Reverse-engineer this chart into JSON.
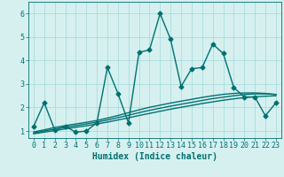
{
  "xlabel": "Humidex (Indice chaleur)",
  "bg_color": "#d6f0f0",
  "line_color": "#007070",
  "xlim": [
    -0.5,
    23.5
  ],
  "ylim": [
    0.7,
    6.5
  ],
  "xticks": [
    0,
    1,
    2,
    3,
    4,
    5,
    6,
    7,
    8,
    9,
    10,
    11,
    12,
    13,
    14,
    15,
    16,
    17,
    18,
    19,
    20,
    21,
    22,
    23
  ],
  "yticks": [
    1,
    2,
    3,
    4,
    5,
    6
  ],
  "main_x": [
    0,
    1,
    2,
    3,
    4,
    5,
    6,
    7,
    8,
    9,
    10,
    11,
    12,
    13,
    14,
    15,
    16,
    17,
    18,
    19,
    20,
    21,
    22,
    23
  ],
  "main_y": [
    1.2,
    2.2,
    1.05,
    1.2,
    0.95,
    1.0,
    1.35,
    3.7,
    2.6,
    1.35,
    4.35,
    4.45,
    6.0,
    4.9,
    2.9,
    3.65,
    3.7,
    4.7,
    4.3,
    2.85,
    2.45,
    2.45,
    1.65,
    2.2
  ],
  "smooth1_x": [
    0,
    1,
    2,
    3,
    4,
    5,
    6,
    7,
    8,
    9,
    10,
    11,
    12,
    13,
    14,
    15,
    16,
    17,
    18,
    19,
    20,
    21,
    22,
    23
  ],
  "smooth1_y": [
    0.88,
    0.95,
    1.02,
    1.09,
    1.16,
    1.22,
    1.3,
    1.38,
    1.47,
    1.56,
    1.66,
    1.75,
    1.84,
    1.93,
    2.01,
    2.09,
    2.17,
    2.24,
    2.31,
    2.37,
    2.42,
    2.46,
    2.48,
    2.5
  ],
  "smooth2_x": [
    0,
    1,
    2,
    3,
    4,
    5,
    6,
    7,
    8,
    9,
    10,
    11,
    12,
    13,
    14,
    15,
    16,
    17,
    18,
    19,
    20,
    21,
    22,
    23
  ],
  "smooth2_y": [
    0.92,
    1.0,
    1.08,
    1.16,
    1.23,
    1.3,
    1.38,
    1.47,
    1.57,
    1.67,
    1.78,
    1.88,
    1.97,
    2.06,
    2.14,
    2.22,
    2.3,
    2.38,
    2.44,
    2.5,
    2.55,
    2.58,
    2.58,
    2.56
  ],
  "smooth3_x": [
    0,
    1,
    2,
    3,
    4,
    5,
    6,
    7,
    8,
    9,
    10,
    11,
    12,
    13,
    14,
    15,
    16,
    17,
    18,
    19,
    20,
    21,
    22,
    23
  ],
  "smooth3_y": [
    0.96,
    1.05,
    1.15,
    1.23,
    1.3,
    1.37,
    1.45,
    1.55,
    1.66,
    1.78,
    1.9,
    2.01,
    2.1,
    2.19,
    2.27,
    2.35,
    2.43,
    2.5,
    2.56,
    2.6,
    2.62,
    2.62,
    2.6,
    2.55
  ],
  "grid_color": "#a0d8d8",
  "marker": "D",
  "markersize": 2.5,
  "linewidth": 1.0,
  "fontsize_label": 7,
  "fontsize_tick": 6
}
